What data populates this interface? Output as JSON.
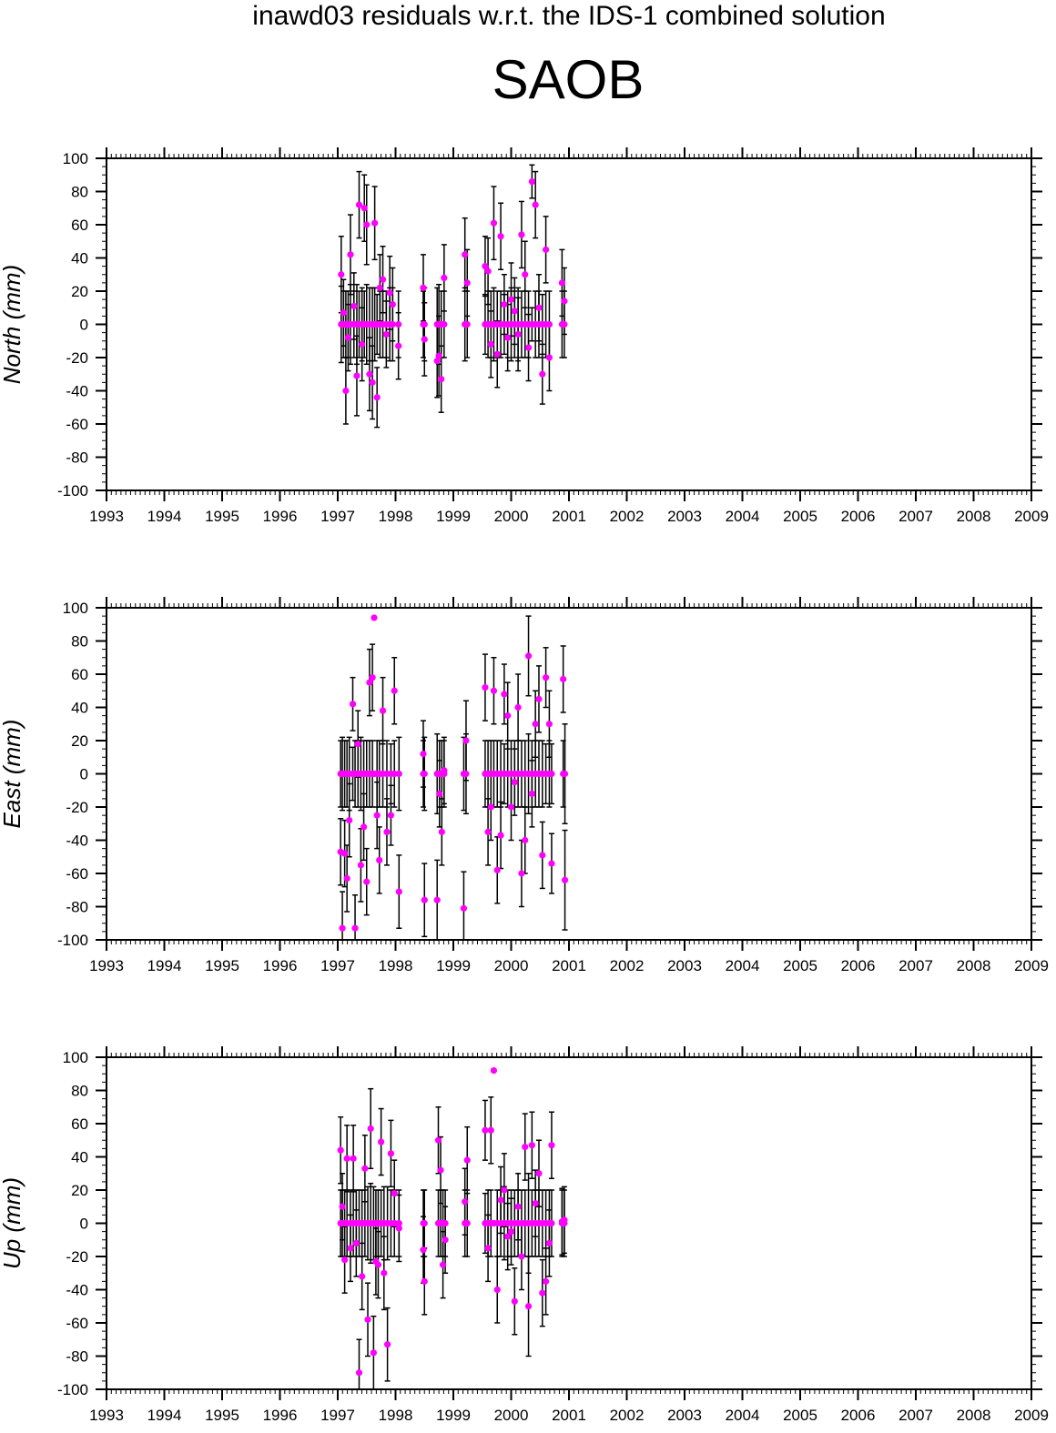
{
  "title": "inawd03 residuals w.r.t. the IDS-1 combined solution",
  "station": "SAOB",
  "colors": {
    "point": "#ff00ff",
    "errorbar": "#000000",
    "frame": "#000000"
  },
  "chart_data": [
    {
      "type": "scatter",
      "ylabel": "North (mm)",
      "xlim": [
        1993,
        2009
      ],
      "ylim": [
        -100,
        100
      ],
      "xticks": [
        "1993",
        "1994",
        "1995",
        "1996",
        "1997",
        "1998",
        "1999",
        "2000",
        "2001",
        "2002",
        "2003",
        "2004",
        "2005",
        "2006",
        "2007",
        "2008",
        "2009"
      ],
      "yticks": [
        "100",
        "80",
        "60",
        "40",
        "20",
        "0",
        "-20",
        "-40",
        "-60",
        "-80",
        "-100"
      ],
      "grid": false,
      "series": [
        {
          "x": [
            1997.06,
            1997.1,
            1997.14,
            1997.18,
            1997.22,
            1997.28,
            1997.33,
            1997.37,
            1997.42,
            1997.46,
            1997.5,
            1997.55,
            1997.6,
            1997.64,
            1997.68,
            1997.73,
            1997.78,
            1997.84,
            1997.9,
            1997.95,
            1998.05,
            1998.48,
            1998.5,
            1998.72,
            1998.75,
            1998.79,
            1998.84,
            1999.2,
            1999.24,
            1999.55,
            1999.6,
            1999.65,
            1999.7,
            1999.76,
            1999.82,
            1999.88,
            1999.94,
            2000.0,
            2000.06,
            2000.12,
            2000.18,
            2000.24,
            2000.3,
            2000.36,
            2000.42,
            2000.48,
            2000.54,
            2000.6,
            2000.66,
            2000.88,
            2000.92
          ],
          "y": [
            30,
            7,
            -40,
            -8,
            42,
            11,
            -31,
            72,
            -12,
            70,
            60,
            -30,
            -35,
            61,
            -44,
            22,
            27,
            -6,
            19,
            12,
            -13,
            22,
            -9,
            -22,
            -19,
            -33,
            28,
            42,
            25,
            35,
            32,
            -12,
            61,
            -18,
            53,
            12,
            -8,
            15,
            8,
            -6,
            54,
            30,
            -14,
            86,
            72,
            10,
            -30,
            45,
            -20,
            25,
            14
          ],
          "err": [
            23,
            20,
            20,
            20,
            24,
            20,
            24,
            20,
            22,
            20,
            24,
            22,
            22,
            22,
            18,
            20,
            20,
            20,
            22,
            22,
            20,
            20,
            22,
            22,
            24,
            20,
            20,
            22,
            20,
            18,
            20,
            20,
            22,
            20,
            20,
            18,
            20,
            22,
            20,
            22,
            20,
            20,
            20,
            10,
            20,
            20,
            18,
            20,
            20,
            20,
            20
          ]
        }
      ]
    },
    {
      "type": "scatter",
      "ylabel": "East (mm)",
      "xlim": [
        1993,
        2009
      ],
      "ylim": [
        -100,
        100
      ],
      "xticks": [
        "1993",
        "1994",
        "1995",
        "1996",
        "1997",
        "1998",
        "1999",
        "2000",
        "2001",
        "2002",
        "2003",
        "2004",
        "2005",
        "2006",
        "2007",
        "2008",
        "2009"
      ],
      "yticks": [
        "100",
        "80",
        "60",
        "40",
        "20",
        "0",
        "-20",
        "-40",
        "-60",
        "-80",
        "-100"
      ],
      "grid": false,
      "series": [
        {
          "x": [
            1997.05,
            1997.08,
            1997.12,
            1997.16,
            1997.2,
            1997.26,
            1997.3,
            1997.35,
            1997.4,
            1997.45,
            1997.5,
            1997.55,
            1997.6,
            1997.63,
            1997.68,
            1997.72,
            1997.78,
            1997.85,
            1997.92,
            1997.98,
            1998.06,
            1998.48,
            1998.5,
            1998.72,
            1998.76,
            1998.8,
            1998.84,
            1999.18,
            1999.22,
            1999.55,
            1999.6,
            1999.65,
            1999.7,
            1999.76,
            1999.82,
            1999.88,
            1999.94,
            2000.0,
            2000.06,
            2000.12,
            2000.18,
            2000.24,
            2000.3,
            2000.36,
            2000.42,
            2000.48,
            2000.54,
            2000.6,
            2000.66,
            2000.7,
            2000.9,
            2000.93
          ],
          "y": [
            -47,
            -93,
            -48,
            -63,
            -28,
            42,
            -93,
            18,
            -55,
            -32,
            -65,
            55,
            58,
            94,
            -25,
            -52,
            38,
            -35,
            -25,
            50,
            -71,
            12,
            -76,
            -76,
            -12,
            -35,
            2,
            -81,
            20,
            52,
            -35,
            -20,
            50,
            -58,
            -37,
            48,
            35,
            -20,
            -5,
            40,
            -60,
            -40,
            71,
            -12,
            30,
            45,
            -49,
            58,
            30,
            -54,
            57,
            -64
          ],
          "err": [
            20,
            22,
            20,
            20,
            22,
            16,
            20,
            20,
            22,
            20,
            20,
            20,
            20,
            0,
            20,
            20,
            20,
            20,
            18,
            20,
            22,
            20,
            22,
            24,
            20,
            20,
            20,
            22,
            24,
            20,
            20,
            20,
            20,
            20,
            20,
            18,
            20,
            20,
            20,
            20,
            20,
            20,
            24,
            20,
            20,
            20,
            20,
            18,
            20,
            18,
            20,
            30
          ]
        }
      ]
    },
    {
      "type": "scatter",
      "ylabel": "Up (mm)",
      "xlim": [
        1993,
        2009
      ],
      "ylim": [
        -100,
        100
      ],
      "xticks": [
        "1993",
        "1994",
        "1995",
        "1996",
        "1997",
        "1998",
        "1999",
        "2000",
        "2001",
        "2002",
        "2003",
        "2004",
        "2005",
        "2006",
        "2007",
        "2008",
        "2009"
      ],
      "yticks": [
        "100",
        "80",
        "60",
        "40",
        "20",
        "0",
        "-20",
        "-40",
        "-60",
        "-80",
        "-100"
      ],
      "grid": false,
      "series": [
        {
          "x": [
            1997.05,
            1997.08,
            1997.12,
            1997.16,
            1997.22,
            1997.27,
            1997.32,
            1997.37,
            1997.42,
            1997.47,
            1997.52,
            1997.57,
            1997.62,
            1997.66,
            1997.7,
            1997.75,
            1997.8,
            1997.86,
            1997.92,
            1997.98,
            1998.06,
            1998.48,
            1998.5,
            1998.74,
            1998.78,
            1998.82,
            1998.86,
            1999.2,
            1999.24,
            1999.55,
            1999.6,
            1999.65,
            1999.7,
            1999.76,
            1999.82,
            1999.88,
            1999.94,
            2000.0,
            2000.06,
            2000.12,
            2000.18,
            2000.24,
            2000.3,
            2000.36,
            2000.42,
            2000.48,
            2000.54,
            2000.6,
            2000.66,
            2000.7,
            2000.88,
            2000.92
          ],
          "y": [
            44,
            10,
            -22,
            39,
            -15,
            39,
            -12,
            -90,
            -32,
            33,
            -58,
            57,
            -78,
            -23,
            -25,
            49,
            -30,
            -73,
            42,
            18,
            -3,
            -16,
            -35,
            50,
            32,
            -25,
            -10,
            13,
            38,
            56,
            -15,
            56,
            92,
            -40,
            14,
            20,
            -8,
            -5,
            -47,
            10,
            -20,
            46,
            -50,
            47,
            12,
            30,
            -42,
            -35,
            -12,
            47,
            1,
            2
          ],
          "err": [
            20,
            20,
            20,
            20,
            20,
            20,
            20,
            20,
            20,
            20,
            22,
            24,
            22,
            20,
            20,
            20,
            22,
            22,
            20,
            20,
            20,
            20,
            20,
            20,
            20,
            20,
            20,
            20,
            20,
            18,
            20,
            20,
            0,
            20,
            20,
            22,
            20,
            20,
            20,
            20,
            20,
            20,
            30,
            20,
            20,
            20,
            20,
            20,
            20,
            20,
            20,
            20
          ]
        }
      ]
    }
  ]
}
